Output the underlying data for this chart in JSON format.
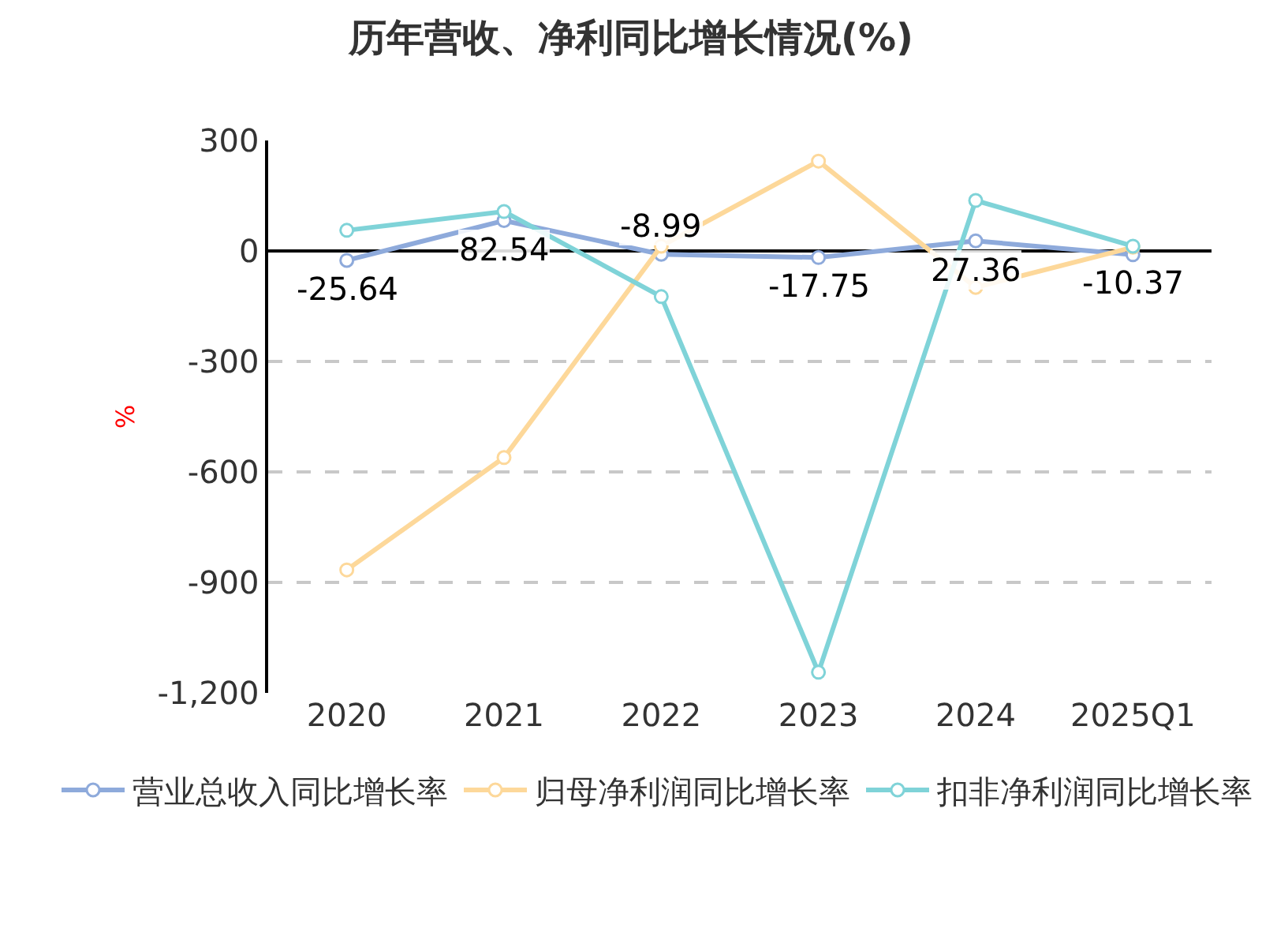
{
  "chart_data": {
    "type": "line",
    "title": "历年营收、净利同比增长情况(%)",
    "ylabel": "%",
    "categories": [
      "2020",
      "2021",
      "2022",
      "2023",
      "2024",
      "2025Q1"
    ],
    "series": [
      {
        "name": "营业总收入同比增长率",
        "color": "#8eaadb",
        "values": [
          -25.64,
          82.54,
          -8.99,
          -17.75,
          27.36,
          -10.37
        ],
        "value_labels": [
          "-25.64",
          "82.54",
          "-8.99",
          "-17.75",
          "27.36",
          "-10.37"
        ]
      },
      {
        "name": "归母净利润同比增长率",
        "color": "#fdd89a",
        "values": [
          -866,
          -561,
          13,
          244,
          -99,
          10
        ]
      },
      {
        "name": "扣非净利润同比增长率",
        "color": "#7fd3d8",
        "values": [
          56,
          107,
          -124,
          -1144,
          137,
          13
        ]
      }
    ],
    "ylim": [
      -1200,
      300
    ],
    "yticks": [
      300,
      0,
      -300,
      -600,
      -900,
      {
        "value": -1200,
        "label": "-1,200"
      }
    ],
    "grid": "y",
    "legend": "bottom",
    "marker": "circle",
    "line_style": "solid"
  }
}
